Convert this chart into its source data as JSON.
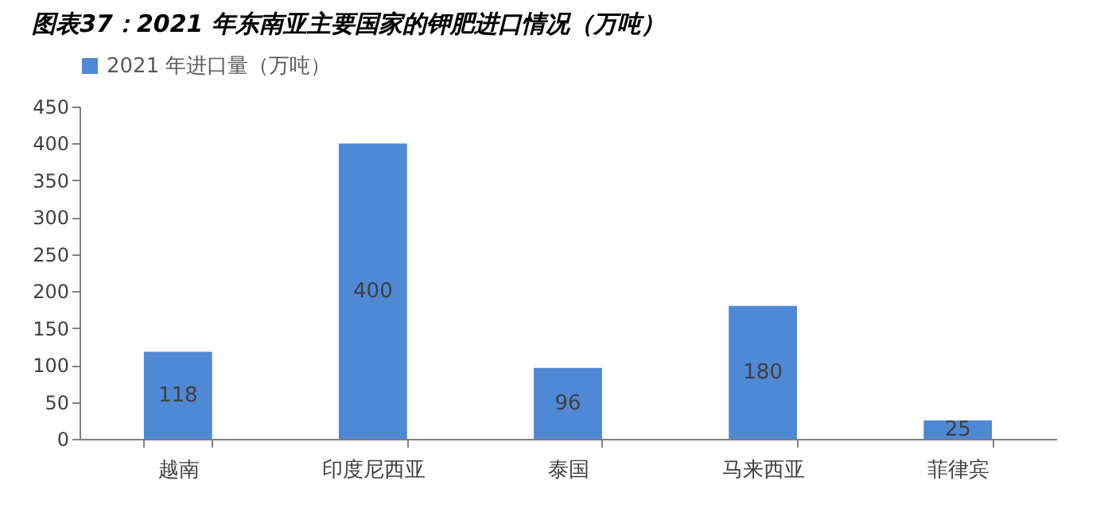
{
  "chart_data": {
    "type": "bar",
    "title": "图表37：2021 年东南亚主要国家的钾肥进口情况（万吨）",
    "categories": [
      "越南",
      "印度尼西亚",
      "泰国",
      "马来西亚",
      "菲律宾"
    ],
    "series": [
      {
        "name": "2021 年进口量（万吨）",
        "color": "#4f88d4",
        "values": [
          118,
          400,
          96,
          180,
          25
        ]
      }
    ],
    "ylim": [
      0,
      450
    ],
    "yticks": [
      0,
      50,
      100,
      150,
      200,
      250,
      300,
      350,
      400,
      450
    ],
    "grid": false,
    "legend": "top",
    "data_labels": true
  }
}
